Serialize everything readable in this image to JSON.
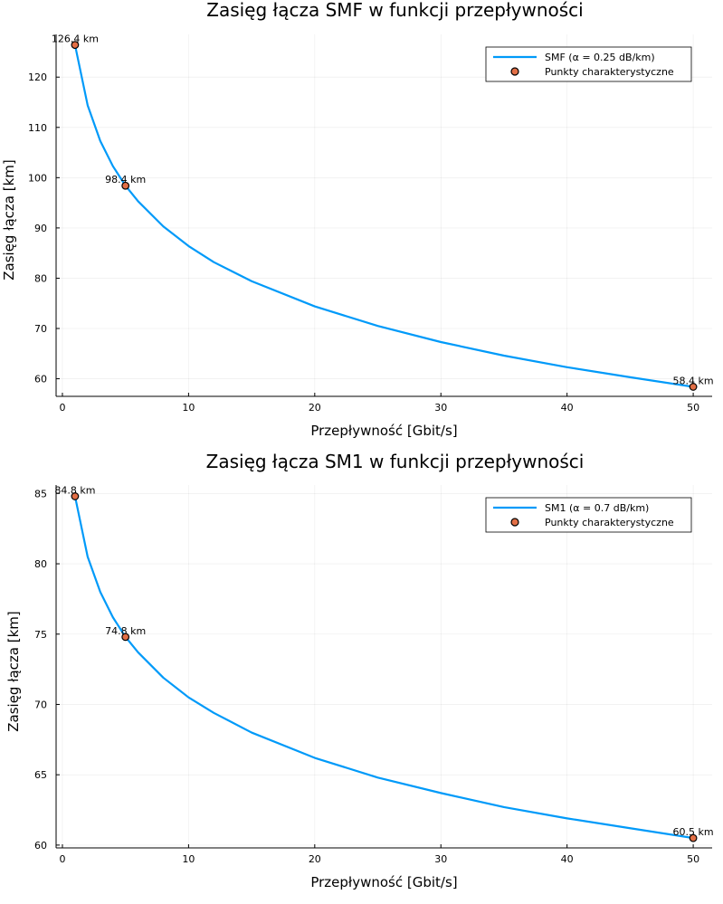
{
  "chart_data": [
    {
      "type": "line",
      "title": "Zasięg łącza SMF w funkcji przepływności",
      "xlabel": "Przepływność [Gbit/s]",
      "ylabel": "Zasięg łącza [km]",
      "xlim": [
        -0.5,
        51.5
      ],
      "ylim": [
        56.5,
        128.5
      ],
      "xticks": [
        0,
        10,
        20,
        30,
        40,
        50
      ],
      "yticks": [
        60,
        70,
        80,
        90,
        100,
        110,
        120
      ],
      "grid": true,
      "legend_position": "top-right",
      "series": [
        {
          "name": "SMF (α = 0.25 dB/km)",
          "color": "#009AF9",
          "x": [
            1,
            2,
            3,
            4,
            5,
            6,
            8,
            10,
            12,
            15,
            20,
            25,
            30,
            35,
            40,
            45,
            50
          ],
          "y": [
            126.4,
            114.4,
            107.3,
            102.3,
            98.4,
            95.3,
            90.3,
            86.4,
            83.2,
            79.4,
            74.4,
            70.5,
            67.3,
            64.6,
            62.3,
            60.3,
            58.4
          ]
        }
      ],
      "points": {
        "name": "Punkty charakterystyczne",
        "color": "#E26F46",
        "x": [
          1,
          5,
          50
        ],
        "y": [
          126.4,
          98.4,
          58.4
        ],
        "labels": [
          "126.4 km",
          "98.4 km",
          "58.4 km"
        ]
      }
    },
    {
      "type": "line",
      "title": "Zasięg łącza SM1 w funkcji przepływności",
      "xlabel": "Przepływność [Gbit/s]",
      "ylabel": "Zasięg łącza [km]",
      "xlim": [
        -0.5,
        51.5
      ],
      "ylim": [
        59.8,
        85.6
      ],
      "xticks": [
        0,
        10,
        20,
        30,
        40,
        50
      ],
      "yticks": [
        60,
        65,
        70,
        75,
        80,
        85
      ],
      "grid": true,
      "legend_position": "top-right",
      "series": [
        {
          "name": "SM1 (α = 0.7 dB/km)",
          "color": "#009AF9",
          "x": [
            1,
            2,
            3,
            4,
            5,
            6,
            8,
            10,
            12,
            15,
            20,
            25,
            30,
            35,
            40,
            45,
            50
          ],
          "y": [
            84.8,
            80.5,
            78.0,
            76.2,
            74.8,
            73.7,
            71.9,
            70.5,
            69.4,
            68.0,
            66.2,
            64.8,
            63.7,
            62.7,
            61.9,
            61.2,
            60.5
          ]
        }
      ],
      "points": {
        "name": "Punkty charakterystyczne",
        "color": "#E26F46",
        "x": [
          1,
          5,
          50
        ],
        "y": [
          84.8,
          74.8,
          60.5
        ],
        "labels": [
          "84.8 km",
          "74.8 km",
          "60.5 km"
        ]
      }
    }
  ]
}
